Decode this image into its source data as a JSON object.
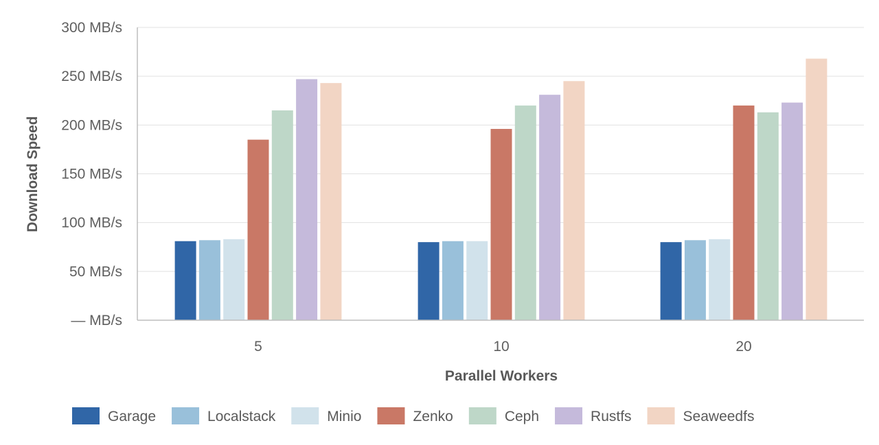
{
  "chart_data": {
    "type": "bar",
    "title": "",
    "xlabel": "Parallel Workers",
    "ylabel": "Download Speed",
    "categories": [
      "5",
      "10",
      "20"
    ],
    "ylim": [
      0,
      300
    ],
    "yticks": [
      0,
      50,
      100,
      150,
      200,
      250,
      300
    ],
    "ytick_labels": [
      "— MB/s",
      "50 MB/s",
      "100 MB/s",
      "150 MB/s",
      "200 MB/s",
      "250 MB/s",
      "300 MB/s"
    ],
    "grid": true,
    "legend_position": "bottom",
    "series": [
      {
        "name": "Garage",
        "color": "#3066a7",
        "values": [
          81,
          80,
          80
        ]
      },
      {
        "name": "Localstack",
        "color": "#99c0da",
        "values": [
          82,
          81,
          82
        ]
      },
      {
        "name": "Minio",
        "color": "#d1e2eb",
        "values": [
          83,
          81,
          83
        ]
      },
      {
        "name": "Zenko",
        "color": "#c97866",
        "values": [
          185,
          196,
          220
        ]
      },
      {
        "name": "Ceph",
        "color": "#bed7c8",
        "values": [
          215,
          220,
          213
        ]
      },
      {
        "name": "Rustfs",
        "color": "#c5badb",
        "values": [
          247,
          231,
          223
        ]
      },
      {
        "name": "Seaweedfs",
        "color": "#f2d5c4",
        "values": [
          243,
          245,
          268
        ]
      }
    ]
  }
}
